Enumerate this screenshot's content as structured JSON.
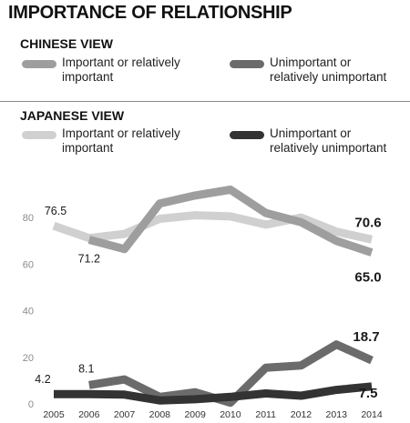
{
  "title": "IMPORTANCE OF RELATIONSHIP",
  "chinese_view": {
    "heading": "CHINESE VIEW",
    "legend": [
      {
        "label": "Important or relatively important",
        "color": "#9e9e9e"
      },
      {
        "label": "Unimportant or relatively unimportant",
        "color": "#6b6b6b"
      }
    ]
  },
  "japanese_view": {
    "heading": "JAPANESE VIEW",
    "legend": [
      {
        "label": "Important or relatively important",
        "color": "#d0d0d0"
      },
      {
        "label": "Unimportant or relatively unimportant",
        "color": "#333333"
      }
    ]
  },
  "chart_data": {
    "type": "line",
    "x": [
      "2005",
      "2006",
      "2007",
      "2008",
      "2009",
      "2010",
      "2011",
      "2012",
      "2013",
      "2014"
    ],
    "yticks": [
      0,
      20,
      40,
      60,
      80
    ],
    "ylim": [
      0,
      95
    ],
    "grid": false,
    "series": [
      {
        "name": "Japanese view: Important or relatively important",
        "color": "#d0d0d0",
        "values": [
          76.5,
          71.2,
          73,
          79.5,
          81,
          80.5,
          77,
          80,
          74,
          70.6
        ]
      },
      {
        "name": "Chinese view: Important or relatively important",
        "color": "#9e9e9e",
        "values": [
          null,
          70.5,
          66.5,
          86,
          89.5,
          92,
          82,
          78,
          70,
          65.0
        ]
      },
      {
        "name": "Chinese view: Unimportant or relatively unimportant",
        "color": "#6b6b6b",
        "values": [
          null,
          8.1,
          10.5,
          3,
          5,
          0.5,
          15.5,
          16.5,
          25.5,
          18.7
        ]
      },
      {
        "name": "Japanese view: Unimportant or relatively unimportant",
        "color": "#333333",
        "values": [
          4.2,
          4.2,
          4,
          1.5,
          2,
          3,
          4.5,
          3.5,
          6,
          7.5
        ]
      }
    ],
    "annotations": [
      {
        "text": "76.5",
        "series": 0,
        "index": 0,
        "bold": false
      },
      {
        "text": "71.2",
        "series": 0,
        "index": 1,
        "bold": false
      },
      {
        "text": "70.6",
        "series": 0,
        "index": 9,
        "bold": true
      },
      {
        "text": "65.0",
        "series": 1,
        "index": 9,
        "bold": true
      },
      {
        "text": "8.1",
        "series": 2,
        "index": 1,
        "bold": false
      },
      {
        "text": "18.7",
        "series": 2,
        "index": 9,
        "bold": true
      },
      {
        "text": "4.2",
        "series": 3,
        "index": 0,
        "bold": false
      },
      {
        "text": "7.5",
        "series": 3,
        "index": 9,
        "bold": true
      }
    ]
  }
}
